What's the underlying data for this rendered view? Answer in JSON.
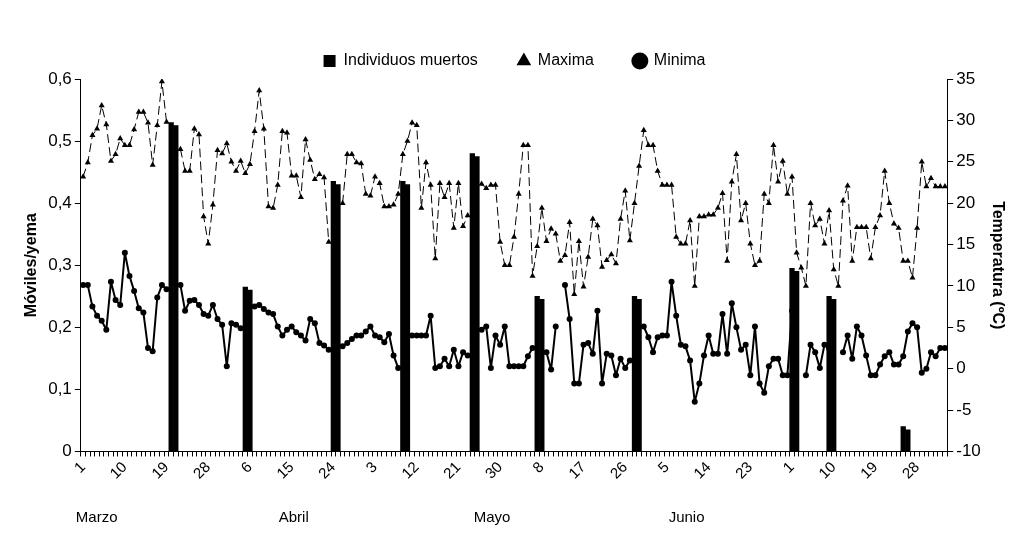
{
  "chart_data": {
    "type": "bar",
    "ylabel": "Móviles/yema",
    "y2label": "Temperatura (ºC)",
    "legend": "top",
    "grid": false,
    "annotations": [
      "Marzo",
      "Abril",
      "Mayo",
      "Junio"
    ],
    "categories": [
      "1",
      null,
      null,
      null,
      null,
      null,
      null,
      null,
      null,
      "10",
      null,
      null,
      null,
      null,
      null,
      null,
      null,
      null,
      "19",
      null,
      null,
      null,
      null,
      null,
      null,
      null,
      null,
      "28",
      null,
      null,
      null,
      null,
      null,
      null,
      null,
      null,
      "6",
      null,
      null,
      null,
      null,
      null,
      null,
      null,
      null,
      "15",
      null,
      null,
      null,
      null,
      null,
      null,
      null,
      null,
      "24",
      null,
      null,
      null,
      null,
      null,
      null,
      null,
      null,
      "3",
      null,
      null,
      null,
      null,
      null,
      null,
      null,
      null,
      "12",
      null,
      null,
      null,
      null,
      null,
      null,
      null,
      null,
      "21",
      null,
      null,
      null,
      null,
      null,
      null,
      null,
      null,
      "30",
      null,
      null,
      null,
      null,
      null,
      null,
      null,
      null,
      "8",
      null,
      null,
      null,
      null,
      null,
      null,
      null,
      null,
      "17",
      null,
      null,
      null,
      null,
      null,
      null,
      null,
      null,
      "26",
      null,
      null,
      null,
      null,
      null,
      null,
      null,
      null,
      "5",
      null,
      null,
      null,
      null,
      null,
      null,
      null,
      null,
      "14",
      null,
      null,
      null,
      null,
      null,
      null,
      null,
      null,
      "23",
      null,
      null,
      null,
      null,
      null,
      null,
      null,
      null,
      "1",
      null,
      null,
      null,
      null,
      null,
      null,
      null,
      null,
      "10",
      null,
      null,
      null,
      null,
      null,
      null,
      null,
      null,
      "19",
      null,
      null,
      null,
      null,
      null,
      null,
      null,
      null,
      "28",
      null,
      null,
      null,
      null,
      null,
      null
    ],
    "ylim": [
      0,
      0.6
    ],
    "yticks": [
      0,
      {
        "value": 0.1,
        "label": "0,1"
      },
      {
        "value": 0.2,
        "label": "0,2"
      },
      {
        "value": 0.3,
        "label": "0,3"
      },
      {
        "value": 0.4,
        "label": "0,4"
      },
      {
        "value": 0.5,
        "label": "0,5"
      },
      {
        "value": 0.6,
        "label": "0,6"
      }
    ],
    "y2lim": [
      -10,
      35
    ],
    "y2ticks": [
      -10,
      -5,
      0,
      5,
      10,
      15,
      20,
      25,
      30,
      35
    ],
    "series": [
      {
        "name": "Individuos muertos",
        "type": "bar",
        "color": "#000000",
        "values": [
          null,
          null,
          null,
          null,
          null,
          null,
          null,
          null,
          null,
          null,
          null,
          null,
          null,
          null,
          null,
          null,
          null,
          null,
          null,
          0.53,
          0.525,
          null,
          null,
          null,
          null,
          null,
          null,
          null,
          null,
          null,
          null,
          null,
          null,
          null,
          null,
          0.265,
          0.26,
          null,
          null,
          null,
          null,
          null,
          null,
          null,
          null,
          null,
          null,
          null,
          null,
          null,
          null,
          null,
          null,
          null,
          0.435,
          0.43,
          null,
          null,
          null,
          null,
          null,
          null,
          null,
          null,
          null,
          null,
          null,
          null,
          null,
          0.435,
          0.43,
          null,
          null,
          null,
          null,
          null,
          null,
          null,
          null,
          null,
          null,
          null,
          null,
          null,
          0.48,
          0.475,
          null,
          null,
          null,
          null,
          null,
          null,
          null,
          null,
          null,
          null,
          null,
          null,
          0.25,
          0.245,
          null,
          null,
          null,
          null,
          null,
          null,
          null,
          null,
          null,
          null,
          null,
          null,
          null,
          null,
          null,
          null,
          null,
          null,
          null,
          0.25,
          0.245,
          null,
          null,
          null,
          null,
          null,
          null,
          null,
          null,
          null,
          null,
          null,
          null,
          null,
          null,
          null,
          null,
          null,
          null,
          null,
          null,
          null,
          null,
          null,
          null,
          null,
          null,
          null,
          null,
          null,
          null,
          null,
          null,
          0.295,
          0.29,
          null,
          null,
          null,
          null,
          null,
          null,
          0.25,
          0.245,
          null,
          null,
          null,
          null,
          null,
          null,
          null,
          null,
          null,
          null,
          null,
          null,
          null,
          null,
          0.04,
          0.035,
          null,
          null,
          null,
          null,
          null,
          null,
          null,
          null
        ]
      },
      {
        "name": "Maxima",
        "type": "line",
        "axis": "y2",
        "color": "#000000",
        "marker": "triangle",
        "line_style": "dashed",
        "values": [
          23.2,
          24.9,
          28.2,
          29.0,
          31.8,
          29.5,
          25.1,
          25.9,
          27.8,
          27.0,
          27.0,
          28.9,
          31.0,
          31.0,
          29.7,
          24.6,
          29.4,
          34.7,
          29.8,
          null,
          null,
          26.5,
          23.9,
          23.9,
          29.0,
          28.3,
          18.4,
          15.1,
          19.8,
          26.4,
          26.0,
          27.2,
          25.0,
          23.9,
          25.1,
          23.6,
          24.7,
          28.7,
          33.6,
          29.0,
          19.6,
          19.4,
          22.2,
          28.7,
          28.5,
          23.3,
          23.3,
          20.7,
          27.7,
          25.2,
          22.9,
          23.5,
          23.1,
          15.3,
          null,
          null,
          20.0,
          25.9,
          25.9,
          24.9,
          24.8,
          21.1,
          20.9,
          23.2,
          22.4,
          19.6,
          19.6,
          19.8,
          21.1,
          25.9,
          27.5,
          29.7,
          29.4,
          19.4,
          24.9,
          22.2,
          13.3,
          22.4,
          20.7,
          22.4,
          17.0,
          22.4,
          17.2,
          18.5,
          null,
          null,
          22.3,
          21.8,
          22.2,
          22.2,
          15.3,
          12.5,
          12.5,
          15.9,
          21.1,
          27.0,
          27.0,
          11.2,
          14.8,
          19.4,
          15.4,
          16.9,
          16.3,
          13.0,
          13.7,
          17.7,
          9.0,
          15.4,
          9.9,
          13.5,
          18.1,
          17.3,
          12.3,
          13.1,
          13.8,
          12.7,
          18.1,
          21.5,
          15.5,
          20.0,
          24.5,
          28.8,
          27.0,
          27.0,
          23.9,
          22.2,
          22.2,
          22.2,
          15.9,
          15.1,
          15.1,
          17.9,
          10.0,
          18.4,
          18.4,
          18.6,
          18.6,
          19.4,
          21.2,
          13.0,
          22.6,
          25.9,
          17.9,
          20.0,
          15.1,
          12.5,
          13.0,
          21.1,
          20.0,
          27.0,
          22.6,
          25.1,
          21.1,
          23.2,
          14.0,
          12.2,
          10.0,
          20.0,
          17.3,
          18.1,
          15.1,
          19.1,
          12.0,
          10.0,
          20.3,
          22.1,
          13.0,
          17.1,
          17.1,
          17.1,
          13.3,
          17.1,
          18.5,
          23.9,
          20.0,
          17.5,
          17.0,
          13.0,
          13.0,
          11.0,
          17.0,
          25.0,
          22.0,
          23.0,
          22.0,
          22.0,
          22.0
        ]
      },
      {
        "name": "Minima",
        "type": "line",
        "axis": "y2",
        "color": "#000000",
        "marker": "circle",
        "line_style": "solid",
        "values": [
          10.1,
          10.1,
          7.5,
          6.4,
          5.8,
          4.7,
          10.5,
          8.3,
          7.7,
          14.0,
          11.2,
          9.4,
          7.3,
          6.8,
          2.5,
          2.1,
          8.6,
          10.1,
          9.6,
          null,
          null,
          10.1,
          7.0,
          8.2,
          8.3,
          7.7,
          6.6,
          6.4,
          7.7,
          6.0,
          5.3,
          0.3,
          5.5,
          5.3,
          4.9,
          null,
          null,
          7.5,
          7.7,
          7.2,
          6.8,
          6.6,
          5.1,
          4.0,
          4.7,
          5.1,
          4.4,
          4.0,
          3.4,
          6.0,
          5.5,
          3.1,
          2.8,
          2.3,
          null,
          null,
          2.7,
          3.1,
          3.6,
          4.0,
          4.0,
          4.5,
          5.1,
          4.0,
          3.8,
          3.2,
          4.2,
          1.6,
          0.1,
          null,
          null,
          4.0,
          4.0,
          4.0,
          4.0,
          6.4,
          0.1,
          0.3,
          1.2,
          0.3,
          2.3,
          0.3,
          2.0,
          1.6,
          null,
          null,
          4.7,
          5.1,
          0.1,
          4.0,
          2.9,
          5.1,
          0.3,
          0.3,
          0.3,
          0.3,
          1.5,
          2.5,
          null,
          null,
          2.0,
          -0.1,
          5.1,
          null,
          10.1,
          6.0,
          -1.8,
          -1.8,
          2.9,
          3.1,
          1.8,
          7.0,
          -1.8,
          1.8,
          1.6,
          -0.8,
          1.2,
          0.1,
          1.0,
          null,
          null,
          5.1,
          3.8,
          2.0,
          3.8,
          4.0,
          4.0,
          10.5,
          6.4,
          2.9,
          2.7,
          1.0,
          -4.0,
          -1.8,
          1.6,
          4.0,
          1.8,
          1.8,
          6.6,
          1.8,
          7.9,
          5.0,
          2.3,
          2.9,
          -0.8,
          5.1,
          -1.8,
          -2.9,
          0.3,
          1.2,
          1.2,
          -0.8,
          -0.8,
          7.0,
          null,
          null,
          -0.8,
          2.9,
          2.0,
          0.1,
          2.9,
          2.5,
          null,
          null,
          2.0,
          4.0,
          1.2,
          5.1,
          4.0,
          1.6,
          -0.8,
          -0.8,
          0.5,
          1.5,
          2.0,
          0.5,
          0.5,
          1.5,
          4.5,
          5.5,
          5.0,
          -0.5,
          0.0,
          2.0,
          1.5,
          2.5,
          2.5
        ]
      }
    ]
  }
}
